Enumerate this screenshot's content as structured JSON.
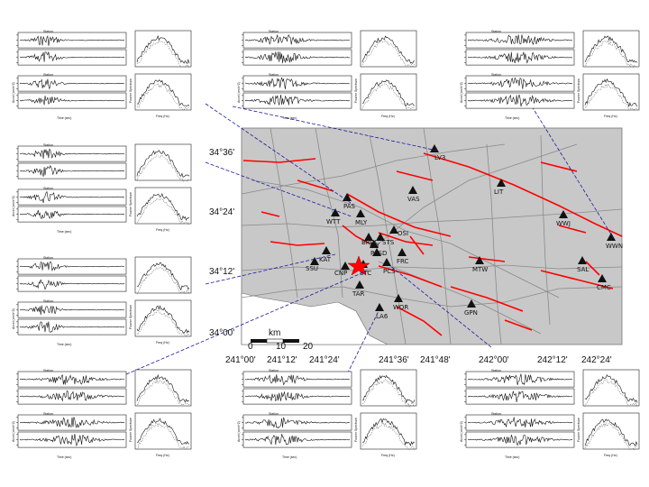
{
  "map": {
    "latitude_ticks": [
      "34°36'",
      "34°24'",
      "34°12'",
      "34°00'"
    ],
    "longitude_ticks": [
      "241°00'",
      "241°12'",
      "241°24'",
      "241°36'",
      "241°48'",
      "242°00'",
      "242°12'",
      "242°24'"
    ],
    "scale_bar": {
      "unit": "km",
      "labels": [
        "0",
        "10",
        "20"
      ]
    },
    "stations": [
      "LV3",
      "LIT",
      "VAS",
      "PAS",
      "WTT",
      "MLY",
      "BRW",
      "STS",
      "OSI",
      "PASD",
      "FRC",
      "KAT",
      "SSU",
      "CNP",
      "STC",
      "FLY",
      "PCS",
      "TAR",
      "LA6",
      "WOR",
      "MTW",
      "GPN",
      "WWJ",
      "WWN",
      "SAL",
      "CMC"
    ],
    "epicenter_marker": "red-star"
  },
  "panel_text": {
    "station_prefix": "Station",
    "time_axis": "Time (sec)",
    "freq_axis": "Freq (Hz)",
    "accel_axis": "Accel (cm/s^2)",
    "spectrum_axis": "Fourier Spectrum"
  },
  "colors": {
    "map_land": "#c8c8c8",
    "faults": "#ff0000",
    "roads": "#8a8a8a",
    "leader_lines": "#1a1aa0",
    "epicenter": "#ff0000"
  }
}
